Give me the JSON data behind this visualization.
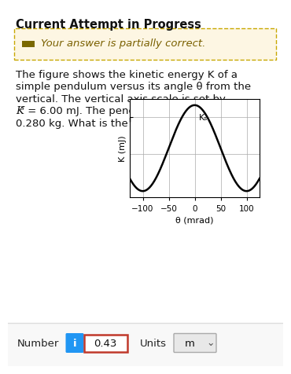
{
  "title_text": "Current Attempt in Progress",
  "banner_text": "Your answer is partially correct.",
  "banner_bg": "#fdf6e3",
  "banner_border": "#c8a800",
  "body_lines": [
    "The figure shows the kinetic energy K of a",
    "simple pendulum versus its angle θ from the",
    "vertical. The vertical axis scale is set by",
    "Kₛ = 6.00 mJ. The pendulum bob has mass",
    "0.280 kg. What is the length of the pendulum?"
  ],
  "graph_xlabel": "θ (mrad)",
  "graph_ylabel": "K (mJ)",
  "graph_ks_label": "Kₛ",
  "graph_xlim": [
    -125,
    125
  ],
  "graph_ylim": [
    -0.5,
    7.5
  ],
  "graph_xticks": [
    -100,
    -50,
    0,
    50,
    100
  ],
  "graph_ks_value": 6.0,
  "curve_color": "#000000",
  "graph_bg": "#ffffff",
  "answer_label": "Number",
  "answer_value": "0.43",
  "answer_btn_color": "#2196F3",
  "answer_btn_text": "i",
  "units_label": "Units",
  "units_value": "m",
  "answer_border_color": "#c0392b",
  "bottom_bg": "#f8f8f8",
  "page_bg": "#ffffff",
  "dash_color": "#7a7a50"
}
